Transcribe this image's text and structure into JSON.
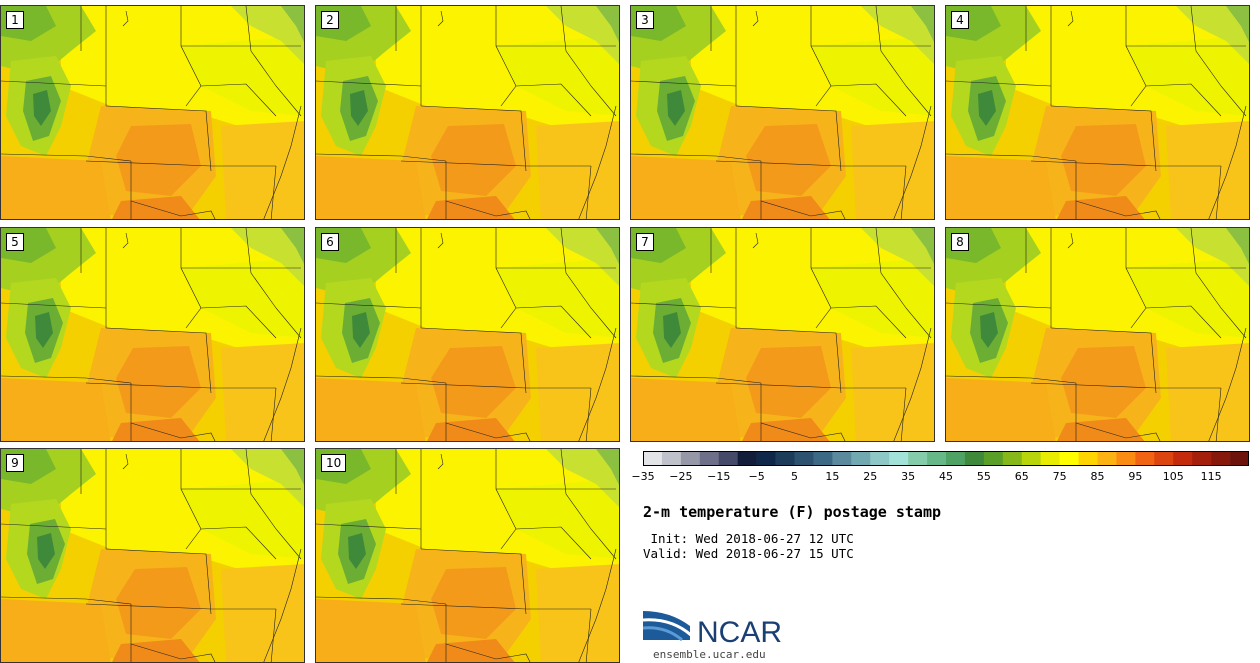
{
  "stamps": [
    {
      "label": "1"
    },
    {
      "label": "2"
    },
    {
      "label": "3"
    },
    {
      "label": "4"
    },
    {
      "label": "5"
    },
    {
      "label": "6"
    },
    {
      "label": "7"
    },
    {
      "label": "8"
    },
    {
      "label": "9"
    },
    {
      "label": "10"
    }
  ],
  "legend": {
    "ticks": [
      "-35",
      "-25",
      "-15",
      "-5",
      "5",
      "15",
      "25",
      "35",
      "45",
      "55",
      "65",
      "75",
      "85",
      "95",
      "105",
      "115"
    ],
    "colors": [
      "#e2e4e8",
      "#c0c2cb",
      "#9698a8",
      "#6d7088",
      "#454a69",
      "#121d3a",
      "#0f2748",
      "#1c3c5a",
      "#2c5270",
      "#3c6a85",
      "#5a8a9c",
      "#72a8b0",
      "#8ec8c6",
      "#a2e2d8",
      "#84ccaa",
      "#66b888",
      "#4ea264",
      "#3f8a3a",
      "#5aa028",
      "#86b81a",
      "#b8d40a",
      "#e8ec00",
      "#ffff00",
      "#ffd400",
      "#fdb214",
      "#fa8c14",
      "#f06414",
      "#dc4410",
      "#c42a0c",
      "#a4200c",
      "#86180c",
      "#6c140c"
    ]
  },
  "title": "2-m temperature (F) postage stamp",
  "init": " Init: Wed 2018-06-27 12 UTC",
  "valid": "Valid: Wed 2018-06-27 15 UTC",
  "logo": {
    "text": "NCAR",
    "url": "ensemble.ucar.edu"
  }
}
